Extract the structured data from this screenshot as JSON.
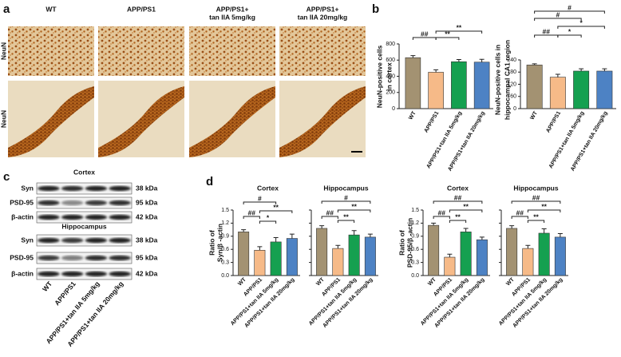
{
  "panel_labels": [
    "a",
    "b",
    "c",
    "d"
  ],
  "panel_a": {
    "columns": [
      [
        "WT"
      ],
      [
        "APP/PS1"
      ],
      [
        "APP/PS1+",
        "tan IIA 5mg/kg"
      ],
      [
        "APP/PS1+",
        "tan IIA 20mg/kg"
      ]
    ],
    "row_labels": [
      "NeuN",
      "NeuN"
    ]
  },
  "panel_c": {
    "groups": [
      {
        "title": "Cortex",
        "rows": [
          {
            "name": "Syn",
            "size": "38 kDa"
          },
          {
            "name": "PSD-95",
            "size": "95 kDa"
          },
          {
            "name": "β-actin",
            "size": "42 kDa"
          }
        ]
      },
      {
        "title": "Hippocampus",
        "rows": [
          {
            "name": "Syn",
            "size": "38 kDa"
          },
          {
            "name": "PSD-95",
            "size": "95 kDa"
          },
          {
            "name": "β-actin",
            "size": "42 kDa"
          }
        ]
      }
    ],
    "lanes": [
      "WT",
      "APP/PS1",
      "APP/PS1+tan IIA 5mg/kg",
      "APP/PS1+tan IIA 20mg/kg"
    ]
  },
  "chart_data": [
    {
      "type": "bar",
      "y_label": [
        "NeuN-positive cells",
        "in cortex"
      ],
      "categories": [
        "WT",
        "APP/PS1",
        "APP/PS1+tan IIA 5mg/kg",
        "APP/PS1+tan IIA 20mg/kg"
      ],
      "values": [
        630,
        450,
        580,
        575
      ],
      "errors": [
        25,
        30,
        28,
        35
      ],
      "colors": [
        "#a39272",
        "#f6ba88",
        "#15a050",
        "#4d82c4"
      ],
      "ylim": [
        0,
        800
      ],
      "yticks": [
        0,
        200,
        400,
        600,
        800
      ],
      "annotations": [
        "##",
        "**",
        "**"
      ]
    },
    {
      "type": "bar",
      "y_label": [
        "NeuN-positive cells in",
        "hippocampal CA1 region"
      ],
      "categories": [
        "WT",
        "APP/PS1",
        "APP/PS1+tan IIA 5mg/kg",
        "APP/PS1+tan IIA 20mg/kg"
      ],
      "values": [
        215,
        155,
        185,
        185
      ],
      "errors": [
        6,
        14,
        11,
        11
      ],
      "colors": [
        "#a39272",
        "#f6ba88",
        "#15a050",
        "#4d82c4"
      ],
      "ylim": [
        0,
        240
      ],
      "yticks": [
        0,
        60,
        120,
        180,
        240
      ],
      "annotations": [
        "#",
        "#",
        "*",
        "##",
        "*"
      ]
    },
    {
      "type": "bar",
      "title": "Cortex",
      "y_label": [
        "Ratio of",
        "Syn/β -actin"
      ],
      "categories": [
        "WT",
        "APP/PS1",
        "APP/PS1+tan IIA 5mg/kg",
        "APP/PS1+tan IIA 20mg/kg"
      ],
      "values": [
        1.0,
        0.58,
        0.77,
        0.85
      ],
      "errors": [
        0.05,
        0.08,
        0.1,
        0.1
      ],
      "colors": [
        "#a39272",
        "#f6ba88",
        "#15a050",
        "#4d82c4"
      ],
      "ylim": [
        0,
        1.5
      ],
      "yticks": [
        {
          "value": 0,
          "label": "0.0"
        },
        0.3,
        0.6,
        0.9,
        1.2,
        1.5
      ],
      "annotations": [
        "#",
        "##",
        "**",
        "*"
      ]
    },
    {
      "type": "bar",
      "title": "Hippocampus",
      "categories": [
        "WT",
        "APP/PS1",
        "APP/PS1+tan IIA 5mg/kg",
        "APP/PS1+tan IIA 20mg/kg"
      ],
      "values": [
        1.08,
        0.62,
        0.93,
        0.88
      ],
      "errors": [
        0.06,
        0.07,
        0.1,
        0.07
      ],
      "colors": [
        "#a39272",
        "#f6ba88",
        "#15a050",
        "#4d82c4"
      ],
      "ylim": [
        0,
        1.5
      ],
      "yticks": [
        0,
        0.3,
        0.6,
        0.9,
        1.2,
        1.5
      ],
      "annotations": [
        "#",
        "##",
        "**",
        "**"
      ]
    },
    {
      "type": "bar",
      "title": "Cortex",
      "y_label": [
        "Ratio of",
        "PSD-95/β -actin"
      ],
      "categories": [
        "WT",
        "APP/PS1",
        "APP/PS1+tan IIA 5mg/kg",
        "APP/PS1+tan IIA 20mg/kg"
      ],
      "values": [
        1.15,
        0.42,
        1.0,
        0.82
      ],
      "errors": [
        0.05,
        0.07,
        0.08,
        0.06
      ],
      "colors": [
        "#a39272",
        "#f6ba88",
        "#15a050",
        "#4d82c4"
      ],
      "ylim": [
        0,
        1.5
      ],
      "yticks": [
        {
          "value": 0,
          "label": "0.0"
        },
        0.3,
        0.6,
        0.9,
        1.2,
        1.5
      ],
      "annotations": [
        "##",
        "##",
        "**",
        "**"
      ]
    },
    {
      "type": "bar",
      "title": "Hippocampus",
      "categories": [
        "WT",
        "APP/PS1",
        "APP/PS1+tan IIA 5mg/kg",
        "APP/PS1+tan IIA 20mg/kg"
      ],
      "values": [
        1.08,
        0.62,
        0.97,
        0.88
      ],
      "errors": [
        0.06,
        0.07,
        0.1,
        0.08
      ],
      "colors": [
        "#a39272",
        "#f6ba88",
        "#15a050",
        "#4d82c4"
      ],
      "ylim": [
        0,
        1.5
      ],
      "yticks": [
        0,
        0.3,
        0.6,
        0.9,
        1.2,
        1.5
      ],
      "annotations": [
        "##",
        "##",
        "**",
        "**"
      ]
    }
  ]
}
